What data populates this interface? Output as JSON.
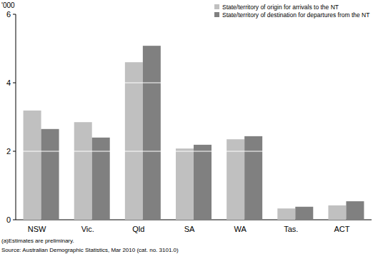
{
  "chart_data": {
    "type": "bar",
    "ylabel": "'000",
    "categories": [
      "NSW",
      "Vic.",
      "Qld",
      "SA",
      "WA",
      "Tas.",
      "ACT"
    ],
    "series": [
      {
        "name": "State/territory of origin for arrivals to the NT",
        "color": "#c0c0c0",
        "values": [
          3.19,
          2.85,
          4.6,
          2.08,
          2.35,
          0.33,
          0.42
        ]
      },
      {
        "name": "State/territory of destination for departures from the NT",
        "color": "#808080",
        "values": [
          2.65,
          2.4,
          5.08,
          2.19,
          2.44,
          0.38,
          0.54
        ]
      }
    ],
    "ylim": [
      0,
      6
    ],
    "yticks": [
      0,
      2,
      4,
      6
    ],
    "grid": true,
    "legend": "top-right",
    "annotations": [
      "(a)Estimates are preliminary.",
      "Source: Australian Demographic Statistics, Mar 2010 (cat. no. 3101.0)"
    ]
  }
}
